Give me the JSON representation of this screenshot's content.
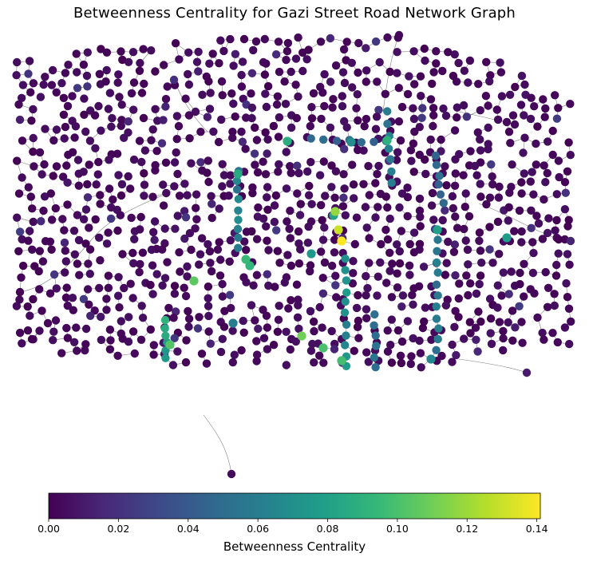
{
  "title": "Betweenness Centrality for Gazi Street Road Network Graph",
  "chart_data": {
    "type": "network_graph",
    "colormap": "viridis",
    "node_color": "betweenness_centrality",
    "edge_color": "#808080",
    "colorbar": {
      "label": "Betweenness Centrality",
      "range": [
        0.0,
        0.141
      ],
      "ticks": [
        0.0,
        0.02,
        0.04,
        0.06,
        0.08,
        0.1,
        0.12,
        0.14
      ],
      "tick_labels": [
        "0.00",
        "0.02",
        "0.04",
        "0.06",
        "0.08",
        "0.10",
        "0.12",
        "0.14"
      ],
      "orientation": "horizontal"
    },
    "highlight_nodes": [
      {
        "value": 0.141,
        "note": "yellow"
      },
      {
        "value": 0.13
      },
      {
        "value": 0.118
      },
      {
        "value": 0.11
      },
      {
        "value": 0.105
      },
      {
        "value": 0.102
      },
      {
        "value": 0.1
      },
      {
        "value": 0.098
      },
      {
        "value": 0.095
      },
      {
        "value": 0.092
      },
      {
        "value": 0.09
      },
      {
        "value": 0.088
      },
      {
        "value": 0.085
      },
      {
        "value": 0.082
      },
      {
        "value": 0.08
      },
      {
        "value": 0.078
      },
      {
        "value": 0.075
      },
      {
        "value": 0.07
      },
      {
        "value": 0.065
      },
      {
        "value": 0.06
      }
    ]
  },
  "colors": {
    "edge": "#808080",
    "viridis": [
      "#440154",
      "#482878",
      "#3e4989",
      "#31688e",
      "#26828e",
      "#1f9e89",
      "#35b779",
      "#6ece58",
      "#b5de2b",
      "#fde725"
    ]
  }
}
